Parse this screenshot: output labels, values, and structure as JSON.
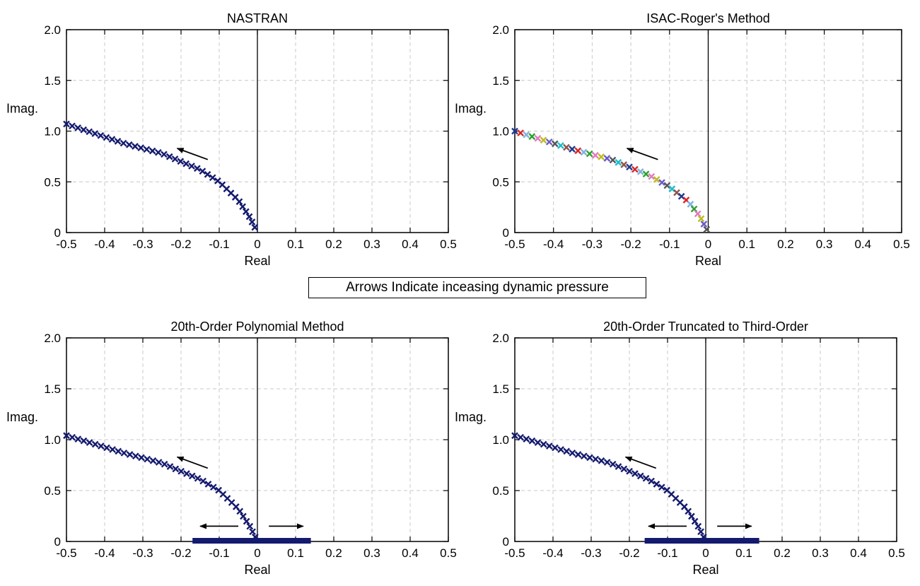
{
  "caption": "Arrows Indicate inceasing dynamic pressure",
  "chart_data": [
    {
      "type": "scatter",
      "title": "NASTRAN",
      "xlabel": "Real",
      "ylabel": "Imag.",
      "xlim": [
        -0.5,
        0.5
      ],
      "ylim": [
        0,
        2.0
      ],
      "xticks": [
        "-0.5",
        "-0.4",
        "-0.3",
        "-0.2",
        "-0.1",
        "0",
        "0.1",
        "0.2",
        "0.3",
        "0.4",
        "0.5"
      ],
      "yticks": [
        "0",
        "0.5",
        "1.0",
        "1.5",
        "2.0"
      ],
      "grid": true,
      "marker": "x",
      "color": "#141a6e",
      "series": [
        {
          "x": [
            -0.5,
            -0.35,
            -0.25,
            -0.15,
            -0.1,
            -0.05,
            -0.02,
            0.0
          ],
          "y": [
            1.07,
            0.88,
            0.78,
            0.62,
            0.5,
            0.32,
            0.15,
            0.0
          ]
        }
      ],
      "arrows": [
        {
          "from": [
            -0.13,
            0.72
          ],
          "to": [
            -0.21,
            0.83
          ]
        }
      ]
    },
    {
      "type": "scatter",
      "title": "ISAC-Roger's Method",
      "xlabel": "Real",
      "ylabel": "Imag.",
      "xlim": [
        -0.5,
        0.5
      ],
      "ylim": [
        0,
        2.0
      ],
      "xticks": [
        "-0.5",
        "-0.4",
        "-0.3",
        "-0.2",
        "-0.1",
        "0",
        "0.1",
        "0.2",
        "0.3",
        "0.4",
        "0.5"
      ],
      "yticks": [
        "0",
        "0.5",
        "1.0",
        "1.5",
        "2.0"
      ],
      "grid": true,
      "marker": "x",
      "multicolor": true,
      "palette": [
        "#1f3a93",
        "#d62728",
        "#7fb3e0",
        "#2ca02c",
        "#e377c2",
        "#bcbd22",
        "#6a5acd",
        "#555555",
        "#17becf",
        "#8c564b"
      ],
      "series": [
        {
          "x": [
            -0.5,
            -0.35,
            -0.25,
            -0.15,
            -0.1,
            -0.05,
            -0.02,
            0.0
          ],
          "y": [
            1.0,
            0.82,
            0.72,
            0.56,
            0.45,
            0.3,
            0.15,
            0.0
          ]
        }
      ],
      "arrows": [
        {
          "from": [
            -0.13,
            0.72
          ],
          "to": [
            -0.21,
            0.83
          ]
        }
      ]
    },
    {
      "type": "scatter",
      "title": "20th-Order Polynomial Method",
      "xlabel": "Real",
      "ylabel": "Imag.",
      "xlim": [
        -0.5,
        0.5
      ],
      "ylim": [
        0,
        2.0
      ],
      "xticks": [
        "-0.5",
        "-0.4",
        "-0.3",
        "-0.2",
        "-0.1",
        "0",
        "0.1",
        "0.2",
        "0.3",
        "0.4",
        "0.5"
      ],
      "yticks": [
        "0",
        "0.5",
        "1.0",
        "1.5",
        "2.0"
      ],
      "grid": true,
      "marker": "x",
      "color": "#141a6e",
      "series": [
        {
          "x": [
            -0.5,
            -0.35,
            -0.25,
            -0.15,
            -0.1,
            -0.05,
            -0.02,
            0.0
          ],
          "y": [
            1.04,
            0.87,
            0.77,
            0.61,
            0.5,
            0.32,
            0.15,
            0.0
          ]
        }
      ],
      "real_axis_band": [
        -0.17,
        0.14
      ],
      "arrows": [
        {
          "from": [
            -0.13,
            0.72
          ],
          "to": [
            -0.21,
            0.83
          ]
        },
        {
          "from": [
            -0.05,
            0.15
          ],
          "to": [
            -0.15,
            0.15
          ]
        },
        {
          "from": [
            0.03,
            0.15
          ],
          "to": [
            0.12,
            0.15
          ]
        }
      ]
    },
    {
      "type": "scatter",
      "title": "20th-Order  Truncated to Third-Order",
      "xlabel": "Real",
      "ylabel": "Imag.",
      "xlim": [
        -0.5,
        0.5
      ],
      "ylim": [
        0,
        2.0
      ],
      "xticks": [
        "-0.5",
        "-0.4",
        "-0.3",
        "-0.2",
        "-0.1",
        "0",
        "0.1",
        "0.2",
        "0.3",
        "0.4",
        "0.5"
      ],
      "yticks": [
        "0",
        "0.5",
        "1.0",
        "1.5",
        "2.0"
      ],
      "grid": true,
      "marker": "x",
      "color": "#141a6e",
      "series": [
        {
          "x": [
            -0.5,
            -0.35,
            -0.25,
            -0.15,
            -0.1,
            -0.05,
            -0.02,
            0.0
          ],
          "y": [
            1.04,
            0.87,
            0.77,
            0.61,
            0.5,
            0.32,
            0.15,
            0.0
          ]
        }
      ],
      "real_axis_band": [
        -0.16,
        0.14
      ],
      "arrows": [
        {
          "from": [
            -0.13,
            0.72
          ],
          "to": [
            -0.21,
            0.83
          ]
        },
        {
          "from": [
            -0.05,
            0.15
          ],
          "to": [
            -0.15,
            0.15
          ]
        },
        {
          "from": [
            0.03,
            0.15
          ],
          "to": [
            0.12,
            0.15
          ]
        }
      ]
    }
  ]
}
